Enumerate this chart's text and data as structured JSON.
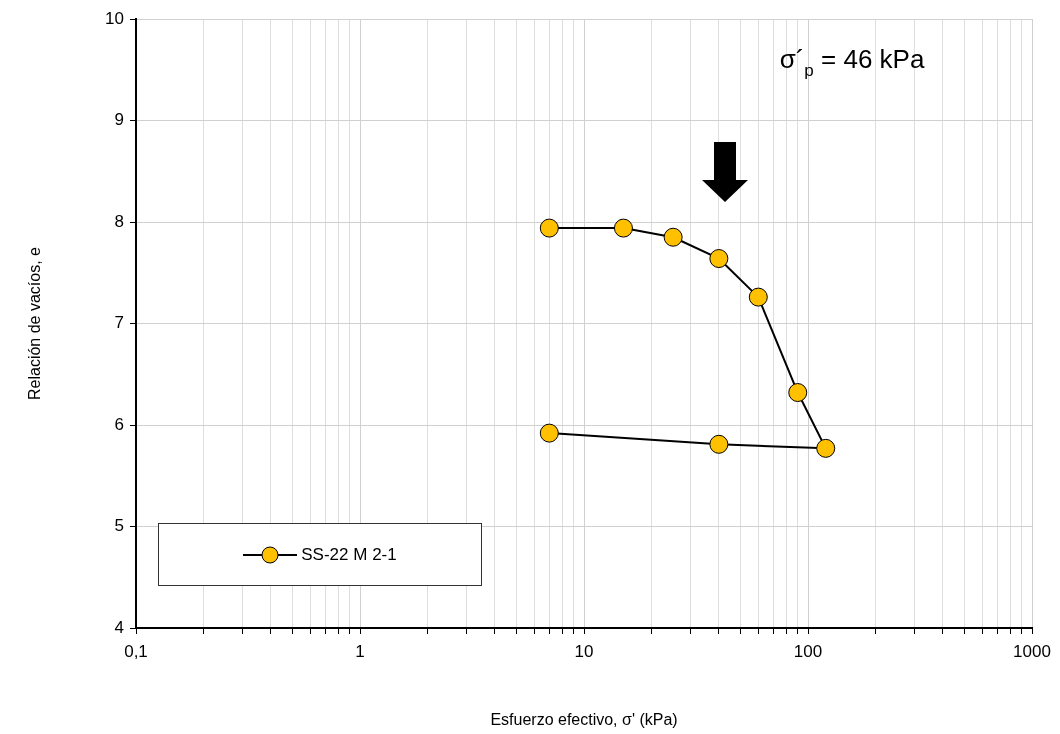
{
  "chart_data": {
    "type": "line",
    "xlabel": "Esfuerzo efectivo, σ' (kPa)",
    "ylabel": "Relación de vacíos, e",
    "annotations": [
      "σ´$_{p}$ = 46 kPa"
    ],
    "series": [
      {
        "name": "SS-22 M 2-1",
        "color": "#ffc000",
        "x": [
          7,
          15,
          25,
          40,
          60,
          90,
          120,
          40,
          7
        ],
        "values": [
          7.94,
          7.94,
          7.85,
          7.64,
          7.26,
          6.32,
          5.77,
          5.81,
          5.92
        ]
      }
    ],
    "log": "x",
    "xlim": [
      0.1,
      1000
    ],
    "xticks": [
      {
        "value": 0.1,
        "label": "0,1"
      },
      1,
      10,
      100,
      1000
    ],
    "ylim": [
      4,
      10
    ],
    "yticks": [
      4,
      5,
      6,
      7,
      8,
      9,
      10
    ],
    "grid": true,
    "legend": "bottom left",
    "marker": "circle",
    "line_style": "solid"
  }
}
